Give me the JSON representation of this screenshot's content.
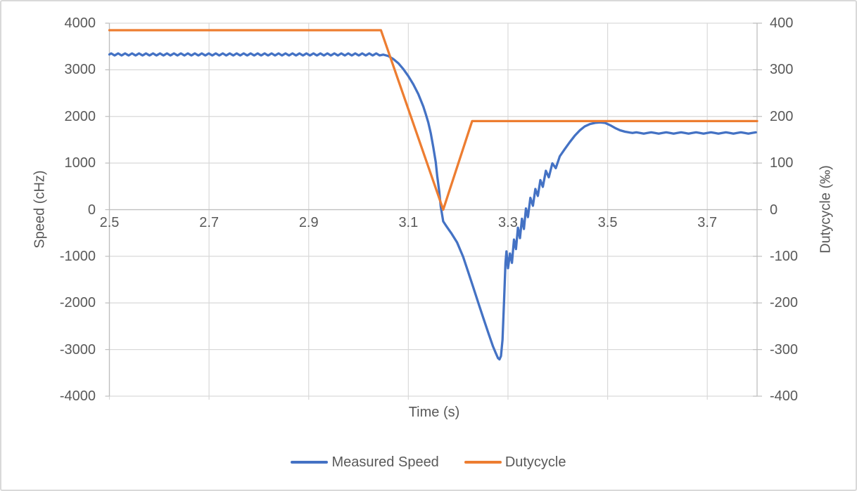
{
  "chart": {
    "y_left_title": "Speed (cHz)",
    "y_right_title": "Dutycycle (‰)",
    "x_title": "Time (s)",
    "legend": [
      {
        "label": "Measured Speed",
        "color": "#4472C4"
      },
      {
        "label": "Dutycycle",
        "color": "#ED7D31"
      }
    ]
  },
  "colors": {
    "series_blue": "#4472C4",
    "series_orange": "#ED7D31",
    "gridline": "#D9D9D9",
    "axis_line": "#BFBFBF",
    "text": "#595959",
    "border": "#D9D9D9",
    "background": "#FFFFFF"
  },
  "chart_data": {
    "type": "line",
    "title": "",
    "xlabel": "Time (s)",
    "xlim": [
      2.5,
      3.8
    ],
    "x_ticks": [
      2.5,
      2.7,
      2.9,
      3.1,
      3.3,
      3.5,
      3.7
    ],
    "x_tick_labels": [
      "2.5",
      "2.7",
      "2.9",
      "3.1",
      "3.3",
      "3.5",
      "3.7"
    ],
    "y_left": {
      "label": "Speed (cHz)",
      "lim": [
        -4000,
        4000
      ],
      "ticks": [
        4000,
        3000,
        2000,
        1000,
        0,
        -1000,
        -2000,
        -3000,
        -4000
      ],
      "tick_labels": [
        "4000",
        "3000",
        "2000",
        "1000",
        "0",
        "-1000",
        "-2000",
        "-3000",
        "-4000"
      ]
    },
    "y_right": {
      "label": "Dutycycle (‰)",
      "lim": [
        -400,
        400
      ],
      "ticks": [
        400,
        300,
        200,
        100,
        0,
        -100,
        -200,
        -300,
        -400
      ],
      "tick_labels": [
        "400",
        "300",
        "200",
        "100",
        "0",
        "-100",
        "-200",
        "-300",
        "-400"
      ]
    },
    "grid": true,
    "legend_position": "bottom",
    "series": [
      {
        "name": "Measured Speed",
        "axis": "left",
        "color": "#4472C4",
        "units": "cHz",
        "flat_start": {
          "t_start": 2.5,
          "t_end": 3.045,
          "value": 3330,
          "ripple_amplitude": 22,
          "ripple_period": 0.014
        },
        "points": [
          [
            3.05,
            3325
          ],
          [
            3.06,
            3295
          ],
          [
            3.07,
            3230
          ],
          [
            3.08,
            3140
          ],
          [
            3.09,
            3015
          ],
          [
            3.1,
            2865
          ],
          [
            3.11,
            2690
          ],
          [
            3.12,
            2480
          ],
          [
            3.13,
            2215
          ],
          [
            3.135,
            2050
          ],
          [
            3.14,
            1870
          ],
          [
            3.145,
            1640
          ],
          [
            3.15,
            1340
          ],
          [
            3.155,
            1020
          ],
          [
            3.158,
            720
          ],
          [
            3.162,
            400
          ],
          [
            3.165,
            70
          ],
          [
            3.17,
            -250
          ],
          [
            3.177,
            -365
          ],
          [
            3.187,
            -515
          ],
          [
            3.198,
            -705
          ],
          [
            3.21,
            -1010
          ],
          [
            3.22,
            -1330
          ],
          [
            3.23,
            -1655
          ],
          [
            3.24,
            -1985
          ],
          [
            3.25,
            -2310
          ],
          [
            3.26,
            -2625
          ],
          [
            3.27,
            -2935
          ],
          [
            3.275,
            -3065
          ],
          [
            3.28,
            -3185
          ],
          [
            3.283,
            -3210
          ],
          [
            3.286,
            -3140
          ],
          [
            3.289,
            -2790
          ],
          [
            3.292,
            -1990
          ],
          [
            3.295,
            -1140
          ],
          [
            3.297,
            -895
          ],
          [
            3.3,
            -1255
          ],
          [
            3.304,
            -940
          ],
          [
            3.308,
            -1140
          ],
          [
            3.312,
            -640
          ],
          [
            3.316,
            -845
          ],
          [
            3.32,
            -385
          ],
          [
            3.324,
            -610
          ],
          [
            3.328,
            -195
          ],
          [
            3.332,
            -415
          ],
          [
            3.336,
            25
          ],
          [
            3.34,
            -160
          ],
          [
            3.345,
            255
          ],
          [
            3.35,
            85
          ],
          [
            3.355,
            445
          ],
          [
            3.36,
            295
          ],
          [
            3.365,
            635
          ],
          [
            3.37,
            490
          ],
          [
            3.376,
            835
          ],
          [
            3.382,
            695
          ],
          [
            3.389,
            995
          ],
          [
            3.396,
            890
          ],
          [
            3.404,
            1145
          ],
          [
            3.414,
            1300
          ],
          [
            3.424,
            1450
          ],
          [
            3.434,
            1585
          ],
          [
            3.444,
            1700
          ],
          [
            3.454,
            1785
          ],
          [
            3.464,
            1835
          ],
          [
            3.475,
            1862
          ],
          [
            3.485,
            1872
          ],
          [
            3.495,
            1860
          ],
          [
            3.505,
            1812
          ],
          [
            3.515,
            1752
          ],
          [
            3.525,
            1702
          ],
          [
            3.535,
            1672
          ],
          [
            3.545,
            1652
          ]
        ],
        "flat_end": {
          "t_start": 3.55,
          "t_end": 3.8,
          "value": 1645,
          "ripple_amplitude": 14,
          "ripple_period": 0.03
        }
      },
      {
        "name": "Dutycycle",
        "axis": "right",
        "color": "#ED7D31",
        "units": "‰",
        "points": [
          [
            2.5,
            385
          ],
          [
            3.045,
            385
          ],
          [
            3.17,
            0
          ],
          [
            3.228,
            190
          ],
          [
            3.8,
            190
          ]
        ]
      }
    ]
  }
}
